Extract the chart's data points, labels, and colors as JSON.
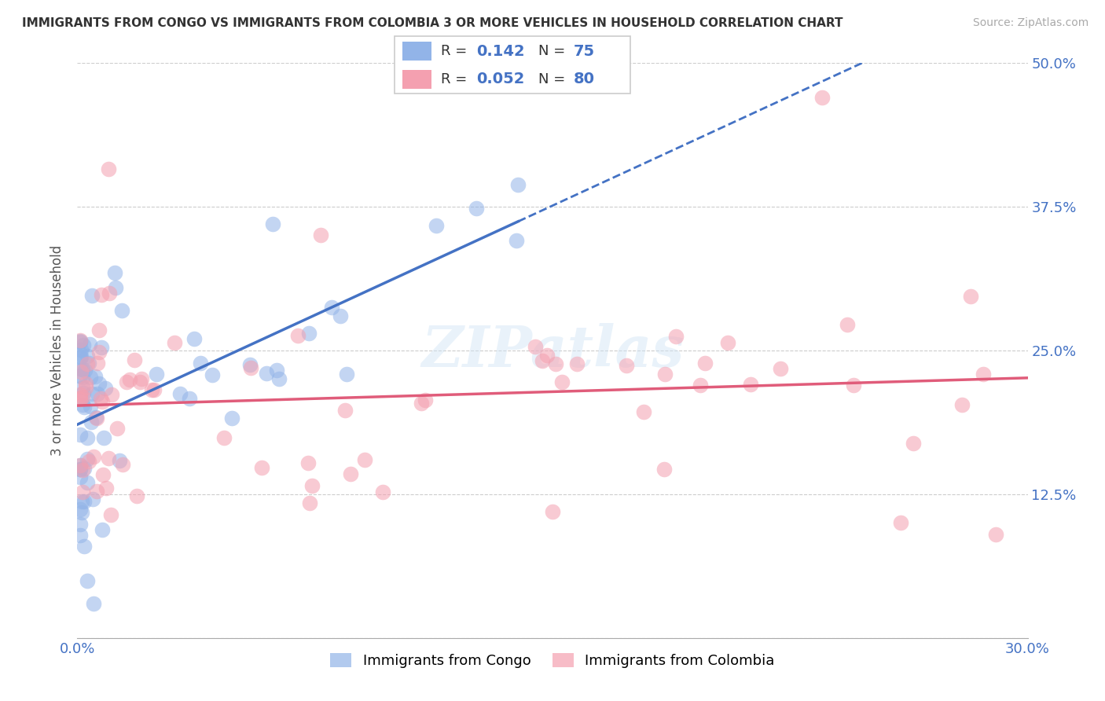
{
  "title": "IMMIGRANTS FROM CONGO VS IMMIGRANTS FROM COLOMBIA 3 OR MORE VEHICLES IN HOUSEHOLD CORRELATION CHART",
  "source": "Source: ZipAtlas.com",
  "ylabel": "3 or more Vehicles in Household",
  "xlim": [
    0.0,
    0.3
  ],
  "ylim": [
    0.0,
    0.5
  ],
  "xticks": [
    0.0,
    0.05,
    0.1,
    0.15,
    0.2,
    0.25,
    0.3
  ],
  "xticklabels": [
    "0.0%",
    "",
    "",
    "",
    "",
    "",
    "30.0%"
  ],
  "yticks": [
    0.0,
    0.125,
    0.25,
    0.375,
    0.5
  ],
  "yticklabels": [
    "",
    "12.5%",
    "25.0%",
    "37.5%",
    "50.0%"
  ],
  "congo_R": 0.142,
  "congo_N": 75,
  "colombia_R": 0.052,
  "colombia_N": 80,
  "congo_color": "#92b4e8",
  "colombia_color": "#f4a0b0",
  "trend_congo_color": "#4472c4",
  "trend_colombia_color": "#e05c7a",
  "watermark": "ZIPatlas",
  "legend_box_color": "#cccccc"
}
